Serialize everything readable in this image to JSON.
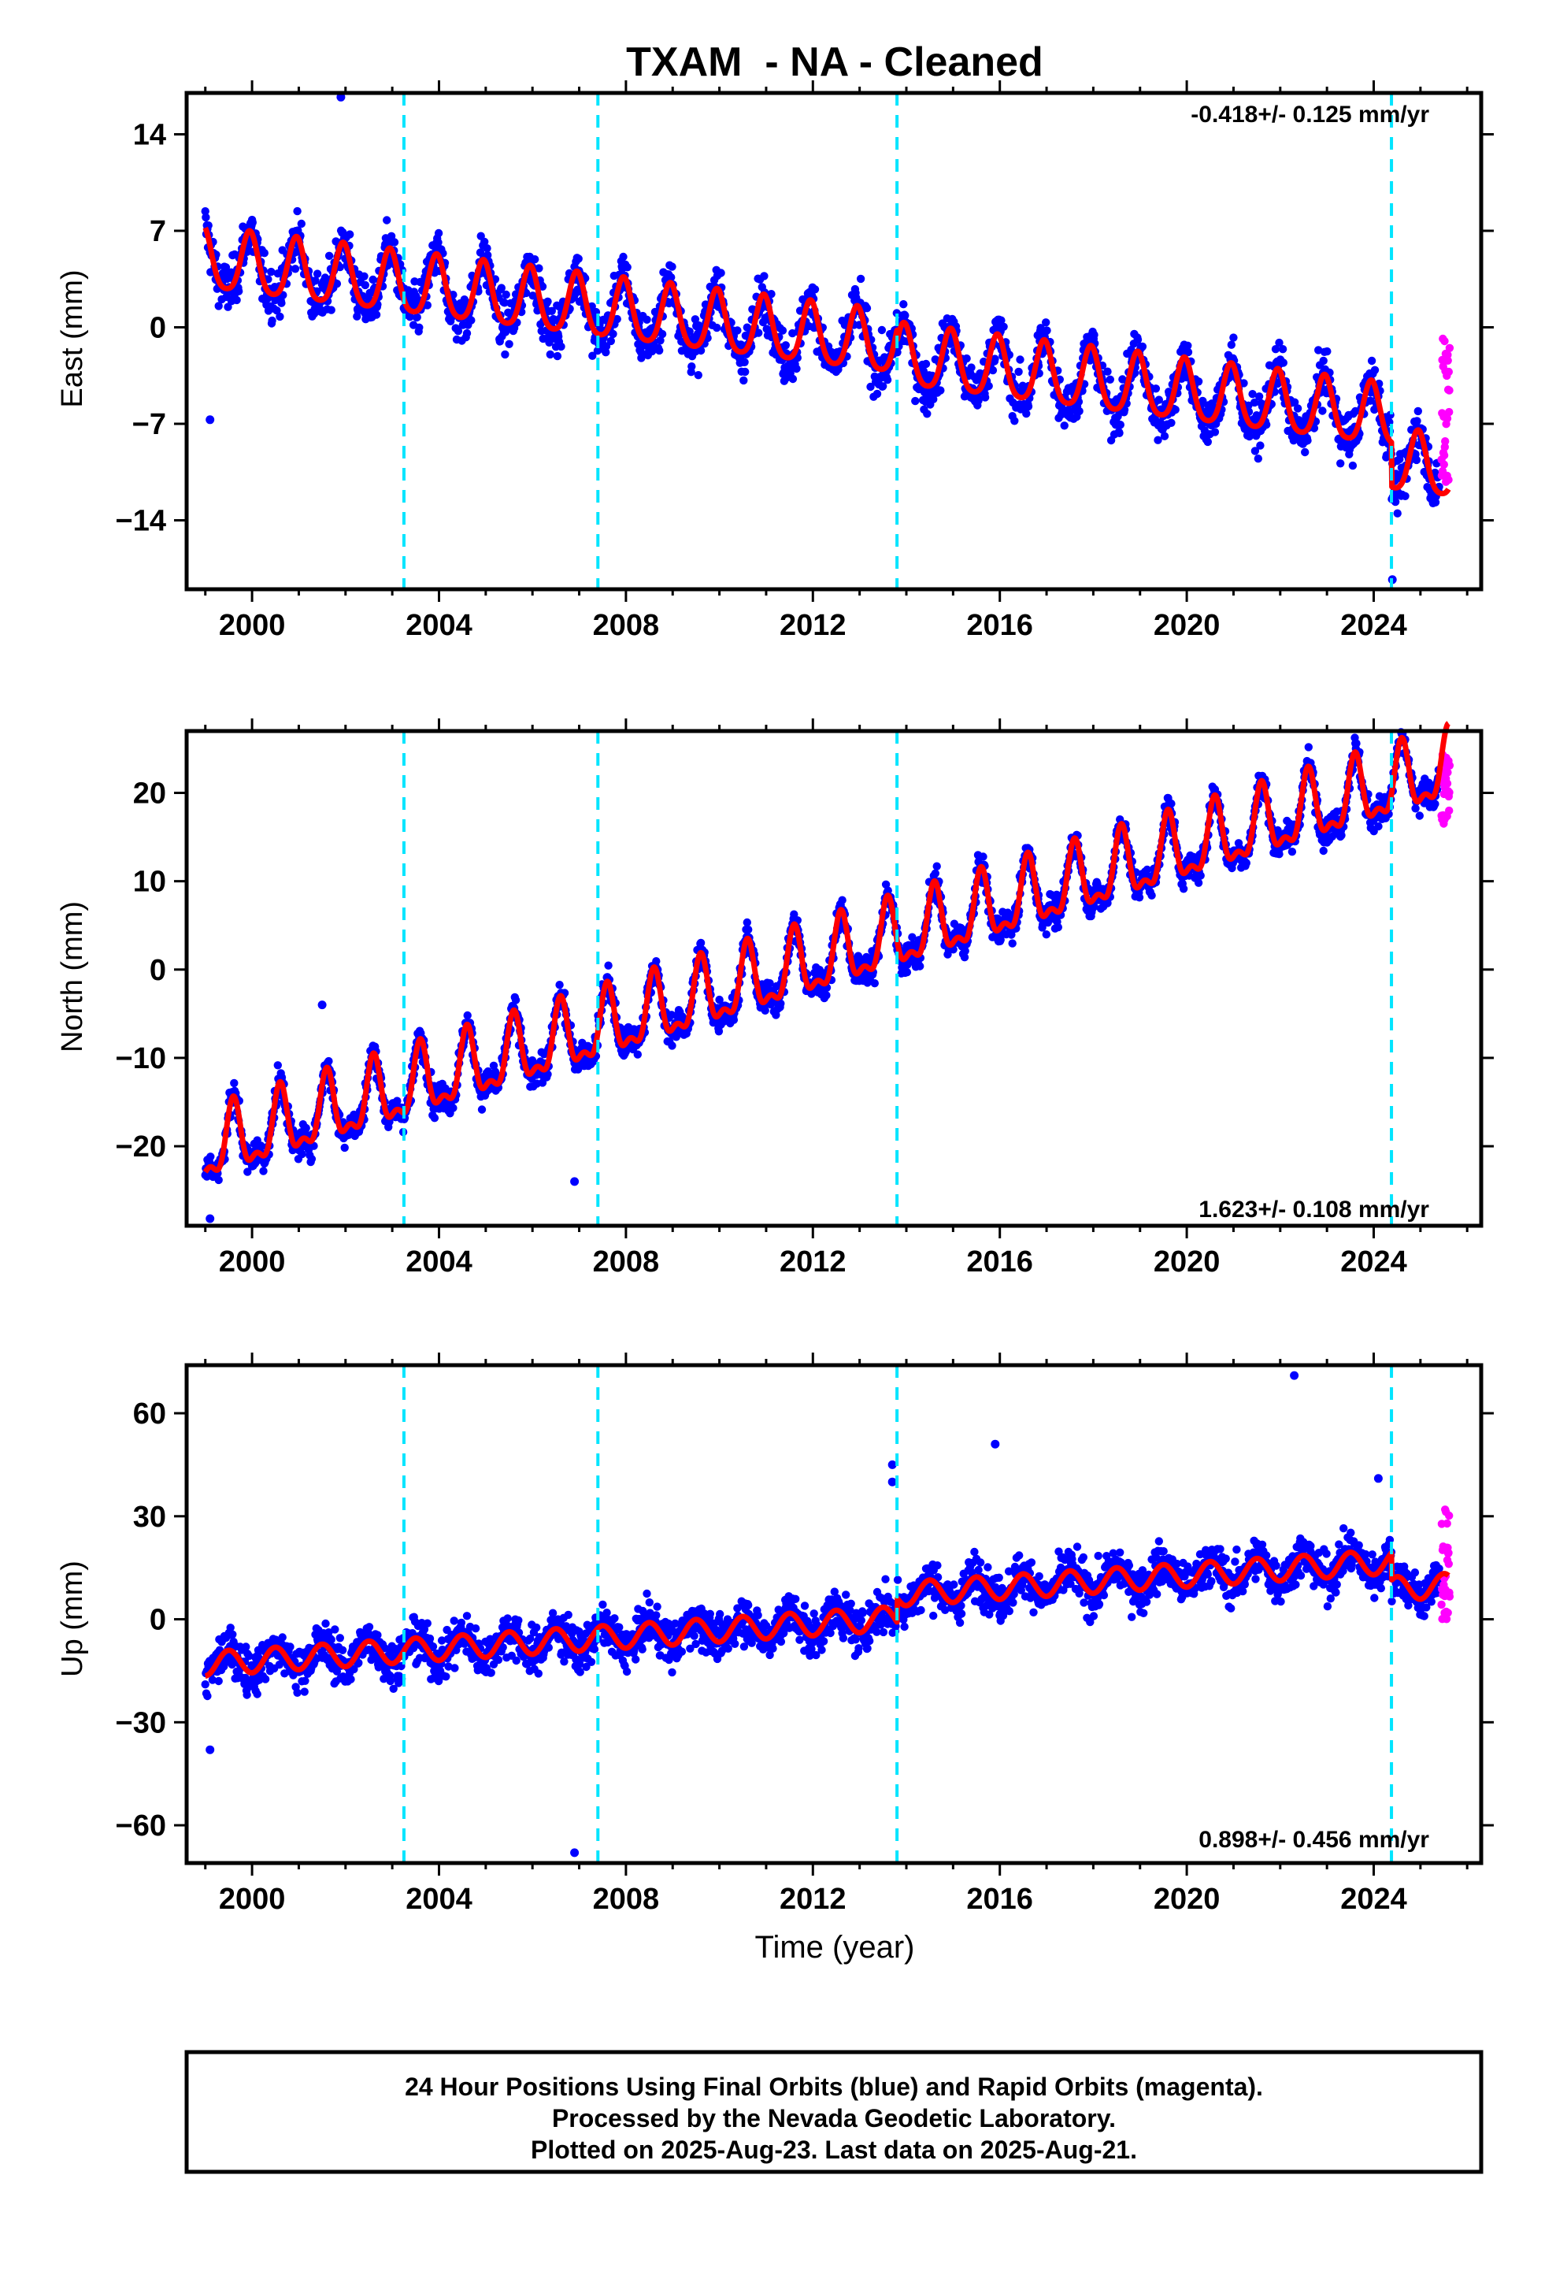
{
  "figure": {
    "title": "TXAM  - NA - Cleaned",
    "xlabel": "Time (year)"
  },
  "colors": {
    "final_orbits": "#0000ff",
    "rapid_orbits": "#ff00ff",
    "model": "#ff0000",
    "steps": "#00e5ff",
    "frame": "#000000"
  },
  "footer": {
    "lines": [
      "24 Hour Positions Using Final Orbits (blue) and Rapid Orbits (magenta).",
      "Processed by the Nevada Geodetic Laboratory.",
      "Plotted on 2025-Aug-23. Last data on 2025-Aug-21."
    ]
  },
  "chart_data": [
    {
      "type": "scatter",
      "title": "",
      "ylabel": "East (mm)",
      "xlabel": "",
      "xlim": [
        1998.6,
        2026.3
      ],
      "ylim": [
        -19,
        17
      ],
      "xticks": [
        2000,
        2004,
        2008,
        2012,
        2016,
        2020,
        2024
      ],
      "yticks": [
        14,
        7,
        0,
        -7,
        -14
      ],
      "ytick_labels": [
        "14",
        "7",
        "0",
        "−7",
        "−14"
      ],
      "grid": false,
      "rate_label": "-0.418+/- 0.125 mm/yr",
      "rate_placement": "top-right",
      "step_epochs": [
        2003.25,
        2007.4,
        2013.8,
        2024.38
      ],
      "model": {
        "start": 1999.0,
        "end": 2025.6,
        "intercept_at_start": 4.8,
        "rate_mm_per_yr": -0.418,
        "offsets": [
          {
            "epoch": 2013.8,
            "jump": -0.8
          },
          {
            "epoch": 2024.38,
            "jump": -3.2
          }
        ],
        "annual_amplitude": 2.2,
        "semiannual_amplitude": 0.4,
        "phase_peak_year_fraction": 0.95,
        "scatter_sd": 1.7
      },
      "series": [
        {
          "name": "Final Orbits",
          "color": "#0000ff",
          "x_range": [
            1999.0,
            2025.4
          ]
        },
        {
          "name": "Rapid Orbits",
          "color": "#ff00ff",
          "x_range": [
            2025.45,
            2025.63
          ],
          "y_range": [
            -11.5,
            -0.5
          ]
        }
      ],
      "outliers": [
        {
          "x": 2001.9,
          "y": 16.7
        },
        {
          "x": 1999.1,
          "y": -6.7
        },
        {
          "x": 2024.4,
          "y": -18.3
        }
      ]
    },
    {
      "type": "scatter",
      "title": "",
      "ylabel": "North (mm)",
      "xlabel": "",
      "xlim": [
        1998.6,
        2026.3
      ],
      "ylim": [
        -29,
        27
      ],
      "xticks": [
        2000,
        2004,
        2008,
        2012,
        2016,
        2020,
        2024
      ],
      "yticks": [
        20,
        10,
        0,
        -10,
        -20
      ],
      "ytick_labels": [
        "20",
        "10",
        "0",
        "−10",
        "−20"
      ],
      "grid": false,
      "rate_label": "1.623+/- 0.108 mm/yr",
      "rate_placement": "bottom-right",
      "step_epochs": [
        2003.25,
        2007.4,
        2013.8,
        2024.38
      ],
      "model": {
        "start": 1999.0,
        "end": 2025.6,
        "intercept_at_start": -20.5,
        "rate_mm_per_yr": 1.623,
        "offsets": [],
        "annual_amplitude": 3.6,
        "semiannual_amplitude": 1.6,
        "phase_peak_year_fraction": 0.6,
        "scatter_sd": 1.6
      },
      "series": [
        {
          "name": "Final Orbits",
          "color": "#0000ff",
          "x_range": [
            1999.0,
            2025.4
          ]
        },
        {
          "name": "Rapid Orbits",
          "color": "#ff00ff",
          "x_range": [
            2025.45,
            2025.63
          ],
          "y_range": [
            16.5,
            24.5
          ]
        }
      ],
      "outliers": [
        {
          "x": 1999.1,
          "y": -28.2
        },
        {
          "x": 2006.9,
          "y": -24.0
        },
        {
          "x": 2001.5,
          "y": -4.0
        }
      ]
    },
    {
      "type": "scatter",
      "title": "",
      "ylabel": "Up (mm)",
      "xlabel": "Time (year)",
      "xlim": [
        1998.6,
        2026.3
      ],
      "ylim": [
        -71,
        74
      ],
      "xticks": [
        2000,
        2004,
        2008,
        2012,
        2016,
        2020,
        2024
      ],
      "yticks": [
        60,
        30,
        0,
        -30,
        -60
      ],
      "ytick_labels": [
        "60",
        "30",
        "0",
        "−30",
        "−60"
      ],
      "grid": false,
      "rate_label": "0.898+/- 0.456 mm/yr",
      "rate_placement": "bottom-right",
      "step_epochs": [
        2003.25,
        2007.4,
        2013.8,
        2024.38
      ],
      "model": {
        "start": 1999.0,
        "end": 2025.6,
        "intercept_at_start": -13.0,
        "rate_mm_per_yr": 0.898,
        "offsets": [
          {
            "epoch": 2013.8,
            "jump": 7.0
          },
          {
            "epoch": 2024.38,
            "jump": -8.0
          }
        ],
        "annual_amplitude": 3.5,
        "semiannual_amplitude": 0.0,
        "phase_peak_year_fraction": 0.5,
        "scatter_sd": 6.0
      },
      "series": [
        {
          "name": "Final Orbits",
          "color": "#0000ff",
          "x_range": [
            1999.0,
            2025.4
          ]
        },
        {
          "name": "Rapid Orbits",
          "color": "#ff00ff",
          "x_range": [
            2025.45,
            2025.63
          ],
          "y_range": [
            0,
            32
          ]
        }
      ],
      "outliers": [
        {
          "x": 2022.3,
          "y": 71.0
        },
        {
          "x": 2015.9,
          "y": 51.0
        },
        {
          "x": 2013.7,
          "y": 45.0
        },
        {
          "x": 2013.7,
          "y": 40.0
        },
        {
          "x": 2006.9,
          "y": -68.0
        },
        {
          "x": 2024.1,
          "y": 41.0
        },
        {
          "x": 1999.1,
          "y": -38.0
        }
      ]
    }
  ]
}
